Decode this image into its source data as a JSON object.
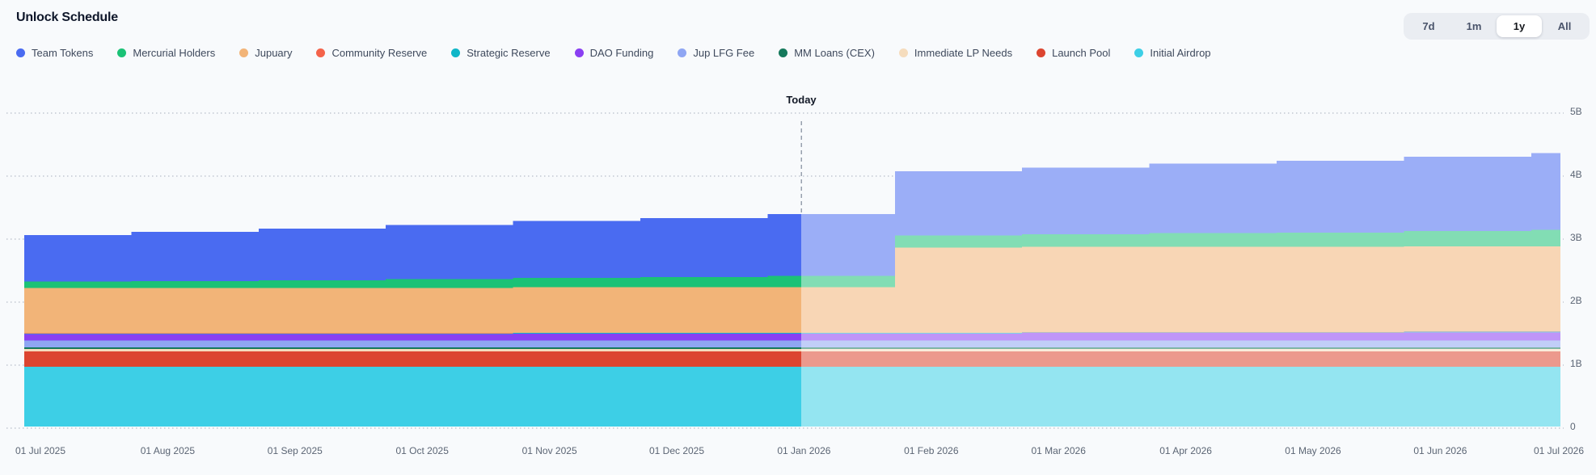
{
  "header": {
    "title": "Unlock Schedule"
  },
  "range_selector": {
    "options": [
      {
        "label": "7d",
        "active": false
      },
      {
        "label": "1m",
        "active": false
      },
      {
        "label": "1y",
        "active": true
      },
      {
        "label": "All",
        "active": false
      }
    ]
  },
  "today_marker": {
    "label": "Today"
  },
  "chart_data": {
    "type": "area",
    "variant": "stacked-step",
    "title": "Unlock Schedule",
    "value_unit": "billions of tokens",
    "x_labels": [
      "01 Jul 2025",
      "01 Aug 2025",
      "01 Sep 2025",
      "01 Oct 2025",
      "01 Nov 2025",
      "01 Dec 2025",
      "01 Jan 2026",
      "01 Feb 2026",
      "01 Mar 2026",
      "01 Apr 2026",
      "01 May 2026",
      "01 Jun 2026",
      "01 Jul 2026"
    ],
    "y_ticks": [
      "0",
      "1B",
      "2B",
      "3B",
      "4B",
      "5B"
    ],
    "ylim_billions": [
      0,
      5
    ],
    "grid": "horizontal-dotted",
    "legend_position": "top",
    "y_axis_side": "right",
    "future_style": "series right of Today marker are faded (mixed ~45% toward white)",
    "annotations": [
      {
        "type": "vline",
        "style": "dashed",
        "label": "Today",
        "x_fraction": 0.506,
        "between": [
          "01 Jan 2026",
          "01 Feb 2026"
        ]
      }
    ],
    "series": [
      {
        "name": "Team Tokens",
        "color": "#4a6bf1",
        "values_billions": [
          0.74,
          0.78,
          0.82,
          0.86,
          0.9,
          0.94,
          0.98,
          1.02,
          1.06,
          1.1,
          1.14,
          1.18,
          1.22
        ]
      },
      {
        "name": "Mercurial Holders",
        "color": "#1bc276",
        "values_billions": [
          0.1,
          0.11,
          0.12,
          0.14,
          0.15,
          0.16,
          0.18,
          0.19,
          0.2,
          0.22,
          0.23,
          0.24,
          0.26
        ]
      },
      {
        "name": "Jupuary",
        "color": "#f2b478",
        "values_billions": [
          0.72,
          0.72,
          0.72,
          0.72,
          0.72,
          0.72,
          0.72,
          1.35,
          1.35,
          1.35,
          1.35,
          1.35,
          1.35
        ]
      },
      {
        "name": "Community Reserve",
        "color": "#f4634a",
        "values_billions": [
          0.005,
          0.005,
          0.005,
          0.005,
          0.005,
          0.005,
          0.005,
          0.005,
          0.005,
          0.005,
          0.005,
          0.005,
          0.005
        ]
      },
      {
        "name": "Strategic Reserve",
        "color": "#10b6c8",
        "values_billions": [
          0.01,
          0.01,
          0.01,
          0.01,
          0.01,
          0.01,
          0.01,
          0.01,
          0.01,
          0.01,
          0.01,
          0.01,
          0.01
        ]
      },
      {
        "name": "DAO Funding",
        "color": "#8a3ff2",
        "values_billions": [
          0.1,
          0.1,
          0.1,
          0.1,
          0.11,
          0.11,
          0.11,
          0.11,
          0.12,
          0.12,
          0.12,
          0.13,
          0.13
        ]
      },
      {
        "name": "Jup LFG Fee",
        "color": "#8fa6f3",
        "values_billions": [
          0.11,
          0.11,
          0.11,
          0.11,
          0.11,
          0.11,
          0.11,
          0.11,
          0.11,
          0.11,
          0.11,
          0.11,
          0.11
        ]
      },
      {
        "name": "MM Loans (CEX)",
        "color": "#15795c",
        "values_billions": [
          0.025,
          0.025,
          0.025,
          0.025,
          0.025,
          0.025,
          0.025,
          0.025,
          0.025,
          0.025,
          0.025,
          0.025,
          0.025
        ]
      },
      {
        "name": "Immediate LP Needs",
        "color": "#f5dcbd",
        "values_billions": [
          0.04,
          0.04,
          0.04,
          0.04,
          0.04,
          0.04,
          0.04,
          0.04,
          0.04,
          0.04,
          0.04,
          0.04,
          0.04
        ]
      },
      {
        "name": "Launch Pool",
        "color": "#dc4530",
        "values_billions": [
          0.24,
          0.24,
          0.24,
          0.24,
          0.24,
          0.24,
          0.24,
          0.24,
          0.24,
          0.24,
          0.24,
          0.24,
          0.24
        ]
      },
      {
        "name": "Initial Airdrop",
        "color": "#3dcfe6",
        "values_billions": [
          0.95,
          0.95,
          0.95,
          0.95,
          0.95,
          0.95,
          0.95,
          0.95,
          0.95,
          0.95,
          0.95,
          0.95,
          0.95
        ]
      }
    ]
  }
}
